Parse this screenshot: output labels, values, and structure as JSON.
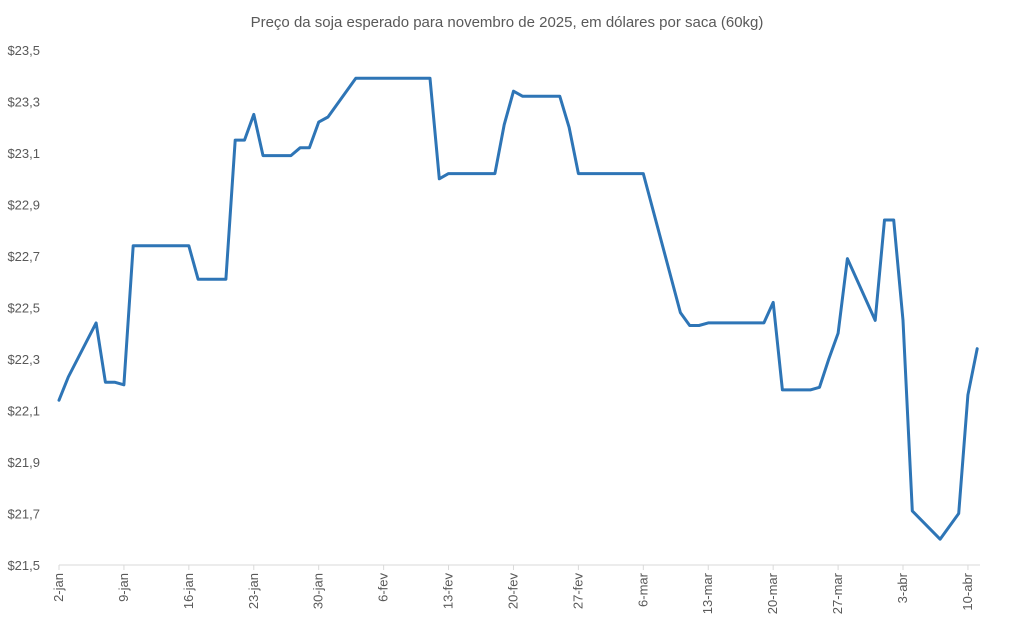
{
  "chart_data": {
    "type": "line",
    "title": "Preço da soja  esperado para novembro de 2025, em dólares por saca (60kg)",
    "xlabel": "",
    "ylabel": "",
    "ylim": [
      21.5,
      23.5
    ],
    "y_ticks": [
      "$21,5",
      "$21,7",
      "$21,9",
      "$22,1",
      "$22,3",
      "$22,5",
      "$22,7",
      "$22,9",
      "$23,1",
      "$23,3",
      "$23,5"
    ],
    "x_ticks": [
      {
        "day": 0,
        "label": "2-jan"
      },
      {
        "day": 7,
        "label": "9-jan"
      },
      {
        "day": 14,
        "label": "16-jan"
      },
      {
        "day": 21,
        "label": "23-jan"
      },
      {
        "day": 28,
        "label": "30-jan"
      },
      {
        "day": 35,
        "label": "6-fev"
      },
      {
        "day": 42,
        "label": "13-fev"
      },
      {
        "day": 49,
        "label": "20-fev"
      },
      {
        "day": 56,
        "label": "27-fev"
      },
      {
        "day": 63,
        "label": "6-mar"
      },
      {
        "day": 70,
        "label": "13-mar"
      },
      {
        "day": 77,
        "label": "20-mar"
      },
      {
        "day": 84,
        "label": "27-mar"
      },
      {
        "day": 91,
        "label": "3-abr"
      },
      {
        "day": 98,
        "label": "10-abr"
      }
    ],
    "x_range_days": [
      0,
      99.3
    ],
    "grid": false,
    "line_color": "#2e75b6",
    "axis_color": "#d9d9d9",
    "series": [
      {
        "points": [
          [
            0,
            22.14
          ],
          [
            1,
            22.23
          ],
          [
            4,
            22.44
          ],
          [
            5,
            22.21
          ],
          [
            6,
            22.21
          ],
          [
            7,
            22.2
          ],
          [
            8,
            22.74
          ],
          [
            14,
            22.74
          ],
          [
            15,
            22.61
          ],
          [
            18,
            22.61
          ],
          [
            19,
            23.15
          ],
          [
            20,
            23.15
          ],
          [
            21,
            23.25
          ],
          [
            22,
            23.09
          ],
          [
            25,
            23.09
          ],
          [
            26,
            23.12
          ],
          [
            27,
            23.12
          ],
          [
            28,
            23.22
          ],
          [
            29,
            23.24
          ],
          [
            32,
            23.39
          ],
          [
            40,
            23.39
          ],
          [
            41,
            23.0
          ],
          [
            42,
            23.02
          ],
          [
            47,
            23.02
          ],
          [
            48,
            23.21
          ],
          [
            49,
            23.34
          ],
          [
            50,
            23.32
          ],
          [
            54,
            23.32
          ],
          [
            55,
            23.2
          ],
          [
            56,
            23.02
          ],
          [
            63,
            23.02
          ],
          [
            67,
            22.48
          ],
          [
            68,
            22.43
          ],
          [
            69,
            22.43
          ],
          [
            70,
            22.44
          ],
          [
            76,
            22.44
          ],
          [
            77,
            22.52
          ],
          [
            78,
            22.18
          ],
          [
            81,
            22.18
          ],
          [
            82,
            22.19
          ],
          [
            83,
            22.3
          ],
          [
            84,
            22.4
          ],
          [
            85,
            22.69
          ],
          [
            88,
            22.45
          ],
          [
            89,
            22.84
          ],
          [
            90,
            22.84
          ],
          [
            91,
            22.45
          ],
          [
            92,
            21.71
          ],
          [
            95,
            21.6
          ],
          [
            97,
            21.7
          ],
          [
            98,
            22.16
          ],
          [
            99,
            22.34
          ]
        ]
      }
    ]
  }
}
